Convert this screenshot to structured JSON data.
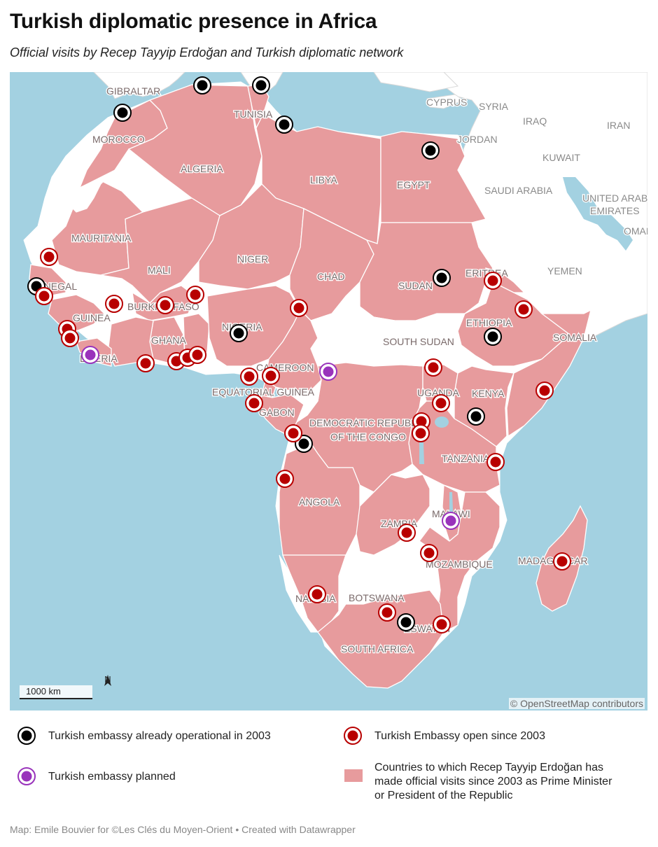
{
  "title": "Turkish diplomatic presence in Africa",
  "subtitle": "Official visits by Recep Tayyip Erdoğan and Turkish diplomatic network",
  "colors": {
    "sea": "#a3d1e1",
    "visited_country": "#e79b9d",
    "other_land": "#ffffff",
    "embassy_2003": "#000000",
    "embassy_since_2003": "#b80000",
    "embassy_planned": "#9933bb"
  },
  "country_labels": [
    "GIBRALTAR",
    "MOROCCO",
    "TUNISIA",
    "ALGERIA",
    "LIBYA",
    "EGYPT",
    "MAURITANIA",
    "MALI",
    "NIGER",
    "CHAD",
    "SUDAN",
    "ERITREA",
    "SENEGAL",
    "GUINEA",
    "BURKINA FASO",
    "NIGERIA",
    "ETHIOPIA",
    "SOMALIA",
    "SOUTH SUDAN",
    "GHANA",
    "LIBERIA",
    "CAMEROON",
    "EQUATORIAL GUINEA",
    "GABON",
    "UGANDA",
    "KENYA",
    "DEMOCRATIC REPUBLIC",
    "OF THE CONGO",
    "TANZANIA",
    "ANGOLA",
    "ZAMBIA",
    "MALAWI",
    "MOZAMBIQUE",
    "MADAGASCAR",
    "NAMIBIA",
    "BOTSWANA",
    "ESWATINI",
    "SOUTH AFRICA"
  ],
  "other_labels": [
    "CYPRUS",
    "SYRIA",
    "IRAQ",
    "IRAN",
    "JORDAN",
    "KUWAIT",
    "SAUDI ARABIA",
    "UNITED ARAB",
    "EMIRATES",
    "OMAN",
    "YEMEN"
  ],
  "scale_label": "1000 km",
  "north_label": "N",
  "map_credit": "© OpenStreetMap contributors",
  "legend": {
    "embassy_2003": "Turkish embassy already operational in 2003",
    "embassy_since_2003": "Turkish Embassy open since 2003",
    "embassy_planned": "Turkish embassy planned",
    "visited_line1": "Countries to which Recep Tayyip Erdoğan has",
    "visited_line2": "made official visits since 2003 as Prime Minister",
    "visited_line3": "or President of the Republic"
  },
  "source": "Map: Emile Bouvier for ©Les Clés du Moyen-Orient • Created with Datawrapper"
}
